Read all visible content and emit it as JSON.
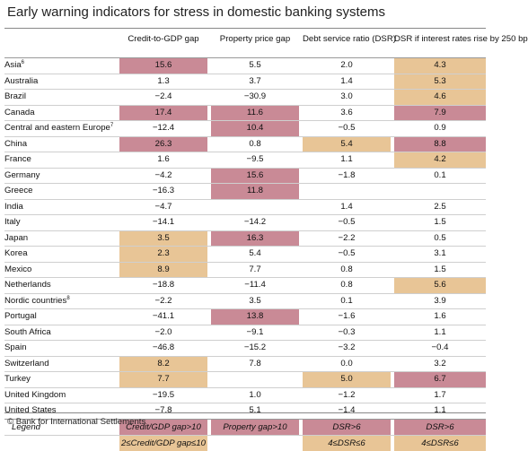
{
  "title": "Early warning indicators for stress in domestic banking systems",
  "headers": {
    "credit": "Credit-to-GDP gap",
    "property": "Property price gap",
    "dsr": "Debt service ratio (DSR)",
    "dsr_rise": "DSR if interest rates rise by 250 bp"
  },
  "rows": [
    {
      "country": "Asia",
      "sup": "6",
      "credit": "15.6",
      "property": "5.5",
      "dsr": "2.0",
      "dsr_rise": "4.3"
    },
    {
      "country": "Australia",
      "sup": "",
      "credit": "1.3",
      "property": "3.7",
      "dsr": "1.4",
      "dsr_rise": "5.3"
    },
    {
      "country": "Brazil",
      "sup": "",
      "credit": "−2.4",
      "property": "−30.9",
      "dsr": "3.0",
      "dsr_rise": "4.6"
    },
    {
      "country": "Canada",
      "sup": "",
      "credit": "17.4",
      "property": "11.6",
      "dsr": "3.6",
      "dsr_rise": "7.9"
    },
    {
      "country": "Central and eastern Europe",
      "sup": "7",
      "credit": "−12.4",
      "property": "10.4",
      "dsr": "−0.5",
      "dsr_rise": "0.9"
    },
    {
      "country": "China",
      "sup": "",
      "credit": "26.3",
      "property": "0.8",
      "dsr": "5.4",
      "dsr_rise": "8.8"
    },
    {
      "country": "France",
      "sup": "",
      "credit": "1.6",
      "property": "−9.5",
      "dsr": "1.1",
      "dsr_rise": "4.2"
    },
    {
      "country": "Germany",
      "sup": "",
      "credit": "−4.2",
      "property": "15.6",
      "dsr": "−1.8",
      "dsr_rise": "0.1"
    },
    {
      "country": "Greece",
      "sup": "",
      "credit": "−16.3",
      "property": "11.8",
      "dsr": "",
      "dsr_rise": ""
    },
    {
      "country": "India",
      "sup": "",
      "credit": "−4.7",
      "property": "",
      "dsr": "1.4",
      "dsr_rise": "2.5"
    },
    {
      "country": "Italy",
      "sup": "",
      "credit": "−14.1",
      "property": "−14.2",
      "dsr": "−0.5",
      "dsr_rise": "1.5"
    },
    {
      "country": "Japan",
      "sup": "",
      "credit": "3.5",
      "property": "16.3",
      "dsr": "−2.2",
      "dsr_rise": "0.5"
    },
    {
      "country": "Korea",
      "sup": "",
      "credit": "2.3",
      "property": "5.4",
      "dsr": "−0.5",
      "dsr_rise": "3.1"
    },
    {
      "country": "Mexico",
      "sup": "",
      "credit": "8.9",
      "property": "7.7",
      "dsr": "0.8",
      "dsr_rise": "1.5"
    },
    {
      "country": "Netherlands",
      "sup": "",
      "credit": "−18.8",
      "property": "−11.4",
      "dsr": "0.8",
      "dsr_rise": "5.6"
    },
    {
      "country": "Nordic countries",
      "sup": "8",
      "credit": "−2.2",
      "property": "3.5",
      "dsr": "0.1",
      "dsr_rise": "3.9"
    },
    {
      "country": "Portugal",
      "sup": "",
      "credit": "−41.1",
      "property": "13.8",
      "dsr": "−1.6",
      "dsr_rise": "1.6"
    },
    {
      "country": "South Africa",
      "sup": "",
      "credit": "−2.0",
      "property": "−9.1",
      "dsr": "−0.3",
      "dsr_rise": "1.1"
    },
    {
      "country": "Spain",
      "sup": "",
      "credit": "−46.8",
      "property": "−15.2",
      "dsr": "−3.2",
      "dsr_rise": "−0.4"
    },
    {
      "country": "Switzerland",
      "sup": "",
      "credit": "8.2",
      "property": "7.8",
      "dsr": "0.0",
      "dsr_rise": "3.2"
    },
    {
      "country": "Turkey",
      "sup": "",
      "credit": "7.7",
      "property": "",
      "dsr": "5.0",
      "dsr_rise": "6.7"
    },
    {
      "country": "United Kingdom",
      "sup": "",
      "credit": "−19.5",
      "property": "1.0",
      "dsr": "−1.2",
      "dsr_rise": "1.7"
    },
    {
      "country": "United States",
      "sup": "",
      "credit": "−7.8",
      "property": "5.1",
      "dsr": "−1.4",
      "dsr_rise": "1.1"
    }
  ],
  "shading": {
    "colors": {
      "high": "#c98a96",
      "medium": "#e8c596"
    },
    "credit": [
      "high",
      "none",
      "none",
      "high",
      "none",
      "high",
      "none",
      "none",
      "none",
      "none",
      "none",
      "medium",
      "medium",
      "medium",
      "none",
      "none",
      "none",
      "none",
      "none",
      "medium",
      "medium",
      "none",
      "none"
    ],
    "property": [
      "none",
      "none",
      "none",
      "high",
      "high",
      "none",
      "none",
      "high",
      "high",
      "none",
      "none",
      "high",
      "none",
      "none",
      "none",
      "none",
      "high",
      "none",
      "none",
      "none",
      "none",
      "none",
      "none"
    ],
    "dsr": [
      "none",
      "none",
      "none",
      "none",
      "none",
      "medium",
      "none",
      "none",
      "none",
      "none",
      "none",
      "none",
      "none",
      "none",
      "none",
      "none",
      "none",
      "none",
      "none",
      "none",
      "medium",
      "none",
      "none"
    ],
    "dsr_rise": [
      "medium",
      "medium",
      "medium",
      "high",
      "none",
      "high",
      "medium",
      "none",
      "none",
      "none",
      "none",
      "none",
      "none",
      "none",
      "medium",
      "none",
      "none",
      "none",
      "none",
      "none",
      "high",
      "none",
      "none"
    ]
  },
  "legend": {
    "label": "Legend",
    "row1": {
      "credit": "Credit/GDP gap>10",
      "property": "Property gap>10",
      "dsr": "DSR>6",
      "dsr_rise": "DSR>6"
    },
    "row2": {
      "credit": "2≤Credit/GDP gap≤10",
      "property": "",
      "dsr": "4≤DSR≤6",
      "dsr_rise": "4≤DSR≤6"
    }
  },
  "source": "© Bank for International Settlements"
}
